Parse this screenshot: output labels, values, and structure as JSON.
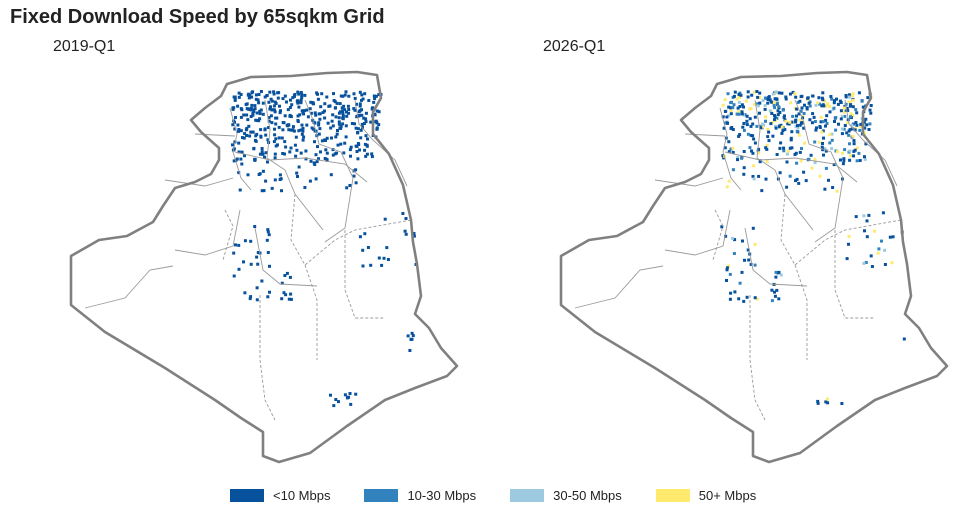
{
  "title": "Fixed Download Speed by 65sqkm Grid",
  "panels": [
    {
      "label": "2019-Q1",
      "mix": [
        1.0,
        0.0,
        0.0,
        0.0
      ],
      "cells": 520
    },
    {
      "label": "2026-Q1",
      "mix": [
        0.55,
        0.18,
        0.09,
        0.18
      ],
      "cells": 520
    }
  ],
  "legend": {
    "items": [
      {
        "label": "<10 Mbps",
        "color": "#08519c"
      },
      {
        "label": "10-30 Mbps",
        "color": "#3182bd"
      },
      {
        "label": "30-50 Mbps",
        "color": "#9ecae1"
      },
      {
        "label": "50+ Mbps",
        "color": "#ffea6e"
      }
    ]
  },
  "colors": {
    "border": "#808080",
    "internal": "#9a9a9a"
  }
}
